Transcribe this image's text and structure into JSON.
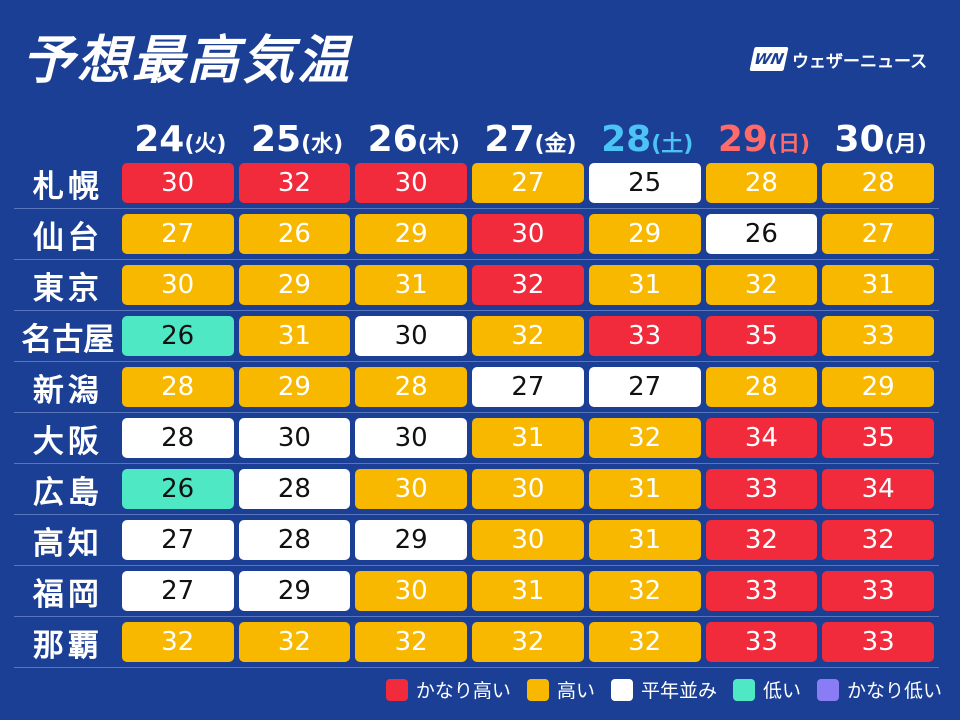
{
  "title": "予想最高気温",
  "brand": {
    "logo": "WN",
    "name": "ウェザーニュース"
  },
  "colors": {
    "background": "#1b3f94",
    "very_high": "#f12a3c",
    "high": "#f9b800",
    "normal": "#ffffff",
    "low": "#4ee8c4",
    "very_low": "#8a7cf5",
    "saturday": "#4cc3f5",
    "sunday": "#ff6b6b"
  },
  "days": [
    {
      "num": "24",
      "wd": "(火)",
      "type": "weekday"
    },
    {
      "num": "25",
      "wd": "(水)",
      "type": "weekday"
    },
    {
      "num": "26",
      "wd": "(木)",
      "type": "weekday"
    },
    {
      "num": "27",
      "wd": "(金)",
      "type": "weekday"
    },
    {
      "num": "28",
      "wd": "(土)",
      "type": "sat"
    },
    {
      "num": "29",
      "wd": "(日)",
      "type": "sun"
    },
    {
      "num": "30",
      "wd": "(月)",
      "type": "weekday"
    }
  ],
  "rows": [
    {
      "city": "札幌",
      "temps": [
        [
          "30",
          "r"
        ],
        [
          "32",
          "r"
        ],
        [
          "30",
          "r"
        ],
        [
          "27",
          "y"
        ],
        [
          "25",
          "w"
        ],
        [
          "28",
          "y"
        ],
        [
          "28",
          "y"
        ]
      ]
    },
    {
      "city": "仙台",
      "temps": [
        [
          "27",
          "y"
        ],
        [
          "26",
          "y"
        ],
        [
          "29",
          "y"
        ],
        [
          "30",
          "r"
        ],
        [
          "29",
          "y"
        ],
        [
          "26",
          "w"
        ],
        [
          "27",
          "y"
        ]
      ]
    },
    {
      "city": "東京",
      "temps": [
        [
          "30",
          "y"
        ],
        [
          "29",
          "y"
        ],
        [
          "31",
          "y"
        ],
        [
          "32",
          "r"
        ],
        [
          "31",
          "y"
        ],
        [
          "32",
          "y"
        ],
        [
          "31",
          "y"
        ]
      ]
    },
    {
      "city": "名古屋",
      "temps": [
        [
          "26",
          "g"
        ],
        [
          "31",
          "y"
        ],
        [
          "30",
          "w"
        ],
        [
          "32",
          "y"
        ],
        [
          "33",
          "r"
        ],
        [
          "35",
          "r"
        ],
        [
          "33",
          "y"
        ]
      ]
    },
    {
      "city": "新潟",
      "temps": [
        [
          "28",
          "y"
        ],
        [
          "29",
          "y"
        ],
        [
          "28",
          "y"
        ],
        [
          "27",
          "w"
        ],
        [
          "27",
          "w"
        ],
        [
          "28",
          "y"
        ],
        [
          "29",
          "y"
        ]
      ]
    },
    {
      "city": "大阪",
      "temps": [
        [
          "28",
          "w"
        ],
        [
          "30",
          "w"
        ],
        [
          "30",
          "w"
        ],
        [
          "31",
          "y"
        ],
        [
          "32",
          "y"
        ],
        [
          "34",
          "r"
        ],
        [
          "35",
          "r"
        ]
      ]
    },
    {
      "city": "広島",
      "temps": [
        [
          "26",
          "g"
        ],
        [
          "28",
          "w"
        ],
        [
          "30",
          "y"
        ],
        [
          "30",
          "y"
        ],
        [
          "31",
          "y"
        ],
        [
          "33",
          "r"
        ],
        [
          "34",
          "r"
        ]
      ]
    },
    {
      "city": "高知",
      "temps": [
        [
          "27",
          "w"
        ],
        [
          "28",
          "w"
        ],
        [
          "29",
          "w"
        ],
        [
          "30",
          "y"
        ],
        [
          "31",
          "y"
        ],
        [
          "32",
          "r"
        ],
        [
          "32",
          "r"
        ]
      ]
    },
    {
      "city": "福岡",
      "temps": [
        [
          "27",
          "w"
        ],
        [
          "29",
          "w"
        ],
        [
          "30",
          "y"
        ],
        [
          "31",
          "y"
        ],
        [
          "32",
          "y"
        ],
        [
          "33",
          "r"
        ],
        [
          "33",
          "r"
        ]
      ]
    },
    {
      "city": "那覇",
      "temps": [
        [
          "32",
          "y"
        ],
        [
          "32",
          "y"
        ],
        [
          "32",
          "y"
        ],
        [
          "32",
          "y"
        ],
        [
          "32",
          "y"
        ],
        [
          "33",
          "r"
        ],
        [
          "33",
          "r"
        ]
      ]
    }
  ],
  "legend": [
    {
      "label": "かなり高い",
      "color": "#f12a3c"
    },
    {
      "label": "高い",
      "color": "#f9b800"
    },
    {
      "label": "平年並み",
      "color": "#ffffff"
    },
    {
      "label": "低い",
      "color": "#4ee8c4"
    },
    {
      "label": "かなり低い",
      "color": "#8a7cf5"
    }
  ]
}
